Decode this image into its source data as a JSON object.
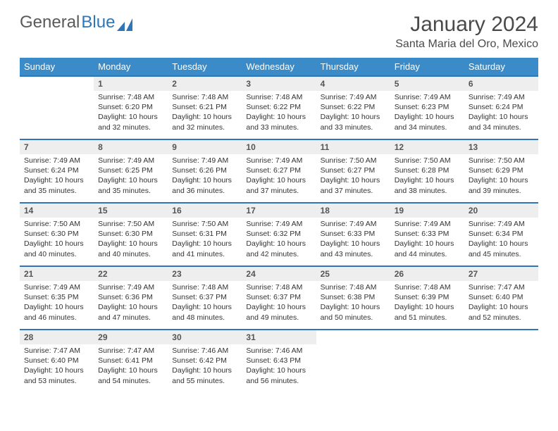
{
  "logo": {
    "text_gray": "General",
    "text_blue": "Blue"
  },
  "title": "January 2024",
  "location": "Santa Maria del Oro, Mexico",
  "colors": {
    "header_bg": "#3b8bc9",
    "header_text": "#ffffff",
    "week_border": "#2f76b8",
    "daynum_bg": "#eeeeee",
    "body_text": "#333333",
    "title_text": "#4a4a4a"
  },
  "day_names": [
    "Sunday",
    "Monday",
    "Tuesday",
    "Wednesday",
    "Thursday",
    "Friday",
    "Saturday"
  ],
  "weeks": [
    [
      null,
      {
        "n": "1",
        "sr": "Sunrise: 7:48 AM",
        "ss": "Sunset: 6:20 PM",
        "dl": "Daylight: 10 hours and 32 minutes."
      },
      {
        "n": "2",
        "sr": "Sunrise: 7:48 AM",
        "ss": "Sunset: 6:21 PM",
        "dl": "Daylight: 10 hours and 32 minutes."
      },
      {
        "n": "3",
        "sr": "Sunrise: 7:48 AM",
        "ss": "Sunset: 6:22 PM",
        "dl": "Daylight: 10 hours and 33 minutes."
      },
      {
        "n": "4",
        "sr": "Sunrise: 7:49 AM",
        "ss": "Sunset: 6:22 PM",
        "dl": "Daylight: 10 hours and 33 minutes."
      },
      {
        "n": "5",
        "sr": "Sunrise: 7:49 AM",
        "ss": "Sunset: 6:23 PM",
        "dl": "Daylight: 10 hours and 34 minutes."
      },
      {
        "n": "6",
        "sr": "Sunrise: 7:49 AM",
        "ss": "Sunset: 6:24 PM",
        "dl": "Daylight: 10 hours and 34 minutes."
      }
    ],
    [
      {
        "n": "7",
        "sr": "Sunrise: 7:49 AM",
        "ss": "Sunset: 6:24 PM",
        "dl": "Daylight: 10 hours and 35 minutes."
      },
      {
        "n": "8",
        "sr": "Sunrise: 7:49 AM",
        "ss": "Sunset: 6:25 PM",
        "dl": "Daylight: 10 hours and 35 minutes."
      },
      {
        "n": "9",
        "sr": "Sunrise: 7:49 AM",
        "ss": "Sunset: 6:26 PM",
        "dl": "Daylight: 10 hours and 36 minutes."
      },
      {
        "n": "10",
        "sr": "Sunrise: 7:49 AM",
        "ss": "Sunset: 6:27 PM",
        "dl": "Daylight: 10 hours and 37 minutes."
      },
      {
        "n": "11",
        "sr": "Sunrise: 7:50 AM",
        "ss": "Sunset: 6:27 PM",
        "dl": "Daylight: 10 hours and 37 minutes."
      },
      {
        "n": "12",
        "sr": "Sunrise: 7:50 AM",
        "ss": "Sunset: 6:28 PM",
        "dl": "Daylight: 10 hours and 38 minutes."
      },
      {
        "n": "13",
        "sr": "Sunrise: 7:50 AM",
        "ss": "Sunset: 6:29 PM",
        "dl": "Daylight: 10 hours and 39 minutes."
      }
    ],
    [
      {
        "n": "14",
        "sr": "Sunrise: 7:50 AM",
        "ss": "Sunset: 6:30 PM",
        "dl": "Daylight: 10 hours and 40 minutes."
      },
      {
        "n": "15",
        "sr": "Sunrise: 7:50 AM",
        "ss": "Sunset: 6:30 PM",
        "dl": "Daylight: 10 hours and 40 minutes."
      },
      {
        "n": "16",
        "sr": "Sunrise: 7:50 AM",
        "ss": "Sunset: 6:31 PM",
        "dl": "Daylight: 10 hours and 41 minutes."
      },
      {
        "n": "17",
        "sr": "Sunrise: 7:49 AM",
        "ss": "Sunset: 6:32 PM",
        "dl": "Daylight: 10 hours and 42 minutes."
      },
      {
        "n": "18",
        "sr": "Sunrise: 7:49 AM",
        "ss": "Sunset: 6:33 PM",
        "dl": "Daylight: 10 hours and 43 minutes."
      },
      {
        "n": "19",
        "sr": "Sunrise: 7:49 AM",
        "ss": "Sunset: 6:33 PM",
        "dl": "Daylight: 10 hours and 44 minutes."
      },
      {
        "n": "20",
        "sr": "Sunrise: 7:49 AM",
        "ss": "Sunset: 6:34 PM",
        "dl": "Daylight: 10 hours and 45 minutes."
      }
    ],
    [
      {
        "n": "21",
        "sr": "Sunrise: 7:49 AM",
        "ss": "Sunset: 6:35 PM",
        "dl": "Daylight: 10 hours and 46 minutes."
      },
      {
        "n": "22",
        "sr": "Sunrise: 7:49 AM",
        "ss": "Sunset: 6:36 PM",
        "dl": "Daylight: 10 hours and 47 minutes."
      },
      {
        "n": "23",
        "sr": "Sunrise: 7:48 AM",
        "ss": "Sunset: 6:37 PM",
        "dl": "Daylight: 10 hours and 48 minutes."
      },
      {
        "n": "24",
        "sr": "Sunrise: 7:48 AM",
        "ss": "Sunset: 6:37 PM",
        "dl": "Daylight: 10 hours and 49 minutes."
      },
      {
        "n": "25",
        "sr": "Sunrise: 7:48 AM",
        "ss": "Sunset: 6:38 PM",
        "dl": "Daylight: 10 hours and 50 minutes."
      },
      {
        "n": "26",
        "sr": "Sunrise: 7:48 AM",
        "ss": "Sunset: 6:39 PM",
        "dl": "Daylight: 10 hours and 51 minutes."
      },
      {
        "n": "27",
        "sr": "Sunrise: 7:47 AM",
        "ss": "Sunset: 6:40 PM",
        "dl": "Daylight: 10 hours and 52 minutes."
      }
    ],
    [
      {
        "n": "28",
        "sr": "Sunrise: 7:47 AM",
        "ss": "Sunset: 6:40 PM",
        "dl": "Daylight: 10 hours and 53 minutes."
      },
      {
        "n": "29",
        "sr": "Sunrise: 7:47 AM",
        "ss": "Sunset: 6:41 PM",
        "dl": "Daylight: 10 hours and 54 minutes."
      },
      {
        "n": "30",
        "sr": "Sunrise: 7:46 AM",
        "ss": "Sunset: 6:42 PM",
        "dl": "Daylight: 10 hours and 55 minutes."
      },
      {
        "n": "31",
        "sr": "Sunrise: 7:46 AM",
        "ss": "Sunset: 6:43 PM",
        "dl": "Daylight: 10 hours and 56 minutes."
      },
      null,
      null,
      null
    ]
  ]
}
